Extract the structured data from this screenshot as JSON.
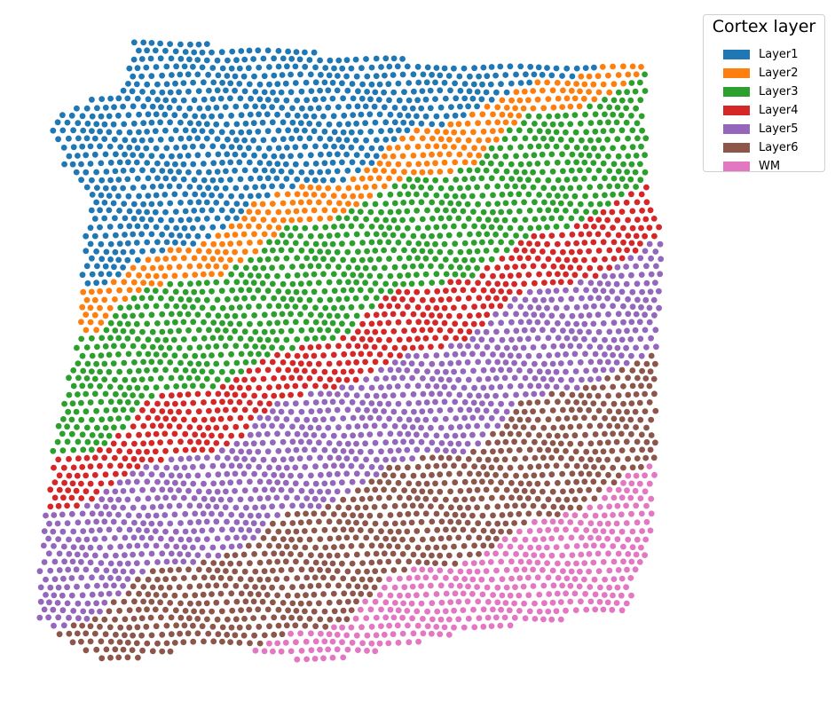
{
  "chart_data": {
    "type": "scatter",
    "title": "",
    "xlabel": "",
    "ylabel": "",
    "axes_visible": false,
    "grid": false,
    "marker": "filled circle",
    "legend": {
      "title": "Cortex layer",
      "placement": "top-right, outside plot",
      "entries": [
        {
          "label": "Layer1",
          "color": "#1f77b4"
        },
        {
          "label": "Layer2",
          "color": "#ff7f0e"
        },
        {
          "label": "Layer3",
          "color": "#2ca02c"
        },
        {
          "label": "Layer4",
          "color": "#d62728"
        },
        {
          "label": "Layer5",
          "color": "#9467bd"
        },
        {
          "label": "Layer6",
          "color": "#8c564b"
        },
        {
          "label": "WM",
          "color": "#e377c2"
        }
      ]
    }
  }
}
